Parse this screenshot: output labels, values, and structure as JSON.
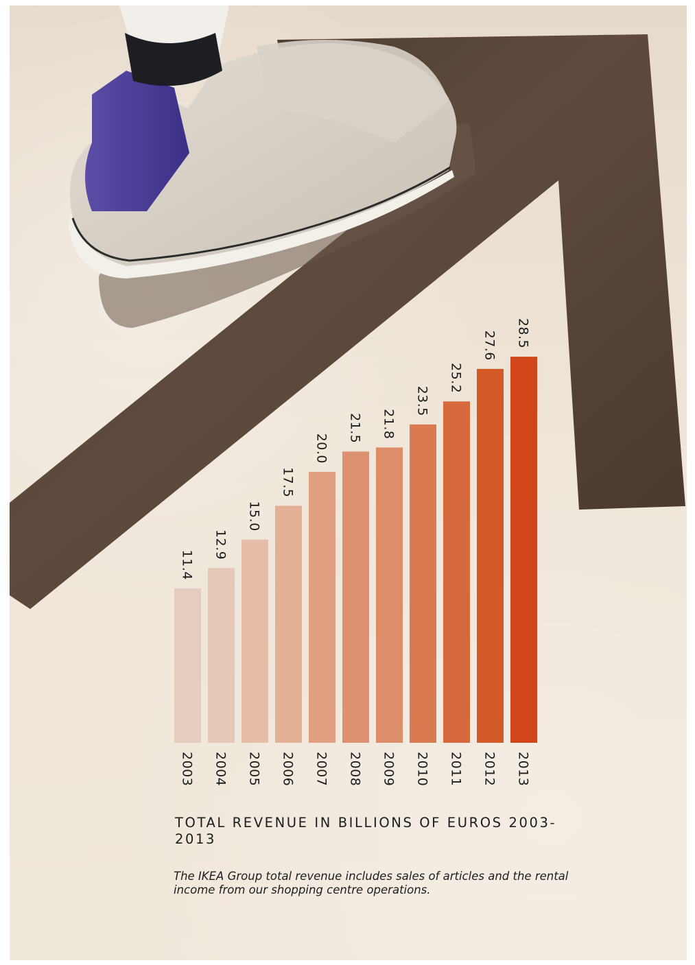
{
  "chart_data": {
    "type": "bar",
    "title": "TOTAL REVENUE IN BILLIONS OF EUROS 2003-2013",
    "categories": [
      "2003",
      "2004",
      "2005",
      "2006",
      "2007",
      "2008",
      "2009",
      "2010",
      "2011",
      "2012",
      "2013"
    ],
    "values": [
      11.4,
      12.9,
      15.0,
      17.5,
      20.0,
      21.5,
      21.8,
      23.5,
      25.2,
      27.6,
      28.5
    ],
    "value_labels": [
      "11.4",
      "12.9",
      "15.0",
      "17.5",
      "20.0",
      "21.5",
      "21.8",
      "23.5",
      "25.2",
      "27.6",
      "28.5"
    ],
    "ylim": [
      0,
      30
    ],
    "grid": false,
    "bar_colors": [
      "#e4cdbe",
      "#e6c8b7",
      "#e5bda8",
      "#e3af95",
      "#df9f80",
      "#dd9170",
      "#de8d69",
      "#d97a50",
      "#d76a3c",
      "#d35a26",
      "#d0461a"
    ]
  },
  "caption": {
    "title": "TOTAL REVENUE IN BILLIONS OF EUROS 2003-2013",
    "note": "The IKEA Group total revenue includes sales of articles and the rental income from our shopping centre operations."
  },
  "background": {
    "floor_color": "#ece2d5",
    "arrow_color": "#4a3a30"
  }
}
